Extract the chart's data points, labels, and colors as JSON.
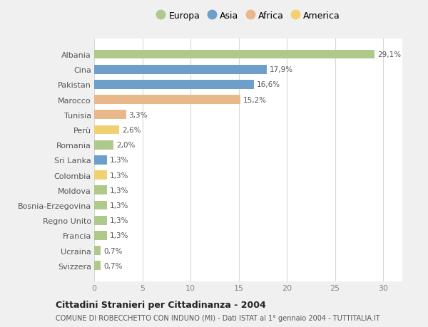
{
  "countries": [
    "Albania",
    "Cina",
    "Pakistan",
    "Marocco",
    "Tunisia",
    "Perù",
    "Romania",
    "Sri Lanka",
    "Colombia",
    "Moldova",
    "Bosnia-Erzegovina",
    "Regno Unito",
    "Francia",
    "Ucraina",
    "Svizzera"
  ],
  "values": [
    29.1,
    17.9,
    16.6,
    15.2,
    3.3,
    2.6,
    2.0,
    1.3,
    1.3,
    1.3,
    1.3,
    1.3,
    1.3,
    0.7,
    0.7
  ],
  "labels": [
    "29,1%",
    "17,9%",
    "16,6%",
    "15,2%",
    "3,3%",
    "2,6%",
    "2,0%",
    "1,3%",
    "1,3%",
    "1,3%",
    "1,3%",
    "1,3%",
    "1,3%",
    "0,7%",
    "0,7%"
  ],
  "continents": [
    "Europa",
    "Asia",
    "Asia",
    "Africa",
    "Africa",
    "America",
    "Europa",
    "Asia",
    "America",
    "Europa",
    "Europa",
    "Europa",
    "Europa",
    "Europa",
    "Europa"
  ],
  "continent_colors": {
    "Europa": "#aec98a",
    "Asia": "#6e9fcb",
    "Africa": "#e8b88a",
    "America": "#f0d070"
  },
  "legend_order": [
    "Europa",
    "Asia",
    "Africa",
    "America"
  ],
  "title": "Cittadini Stranieri per Cittadinanza - 2004",
  "subtitle": "COMUNE DI ROBECCHETTO CON INDUNO (MI) - Dati ISTAT al 1° gennaio 2004 - TUTTITALIA.IT",
  "xlim": [
    0,
    32
  ],
  "xticks": [
    0,
    5,
    10,
    15,
    20,
    25,
    30
  ],
  "background_color": "#f0f0f0",
  "plot_bg_color": "#ffffff",
  "grid_color": "#d8d8d8",
  "label_color": "#555555",
  "tick_color": "#888888"
}
